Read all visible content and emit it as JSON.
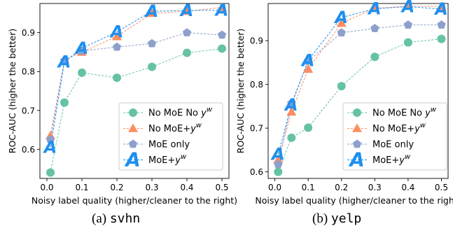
{
  "captions": [
    {
      "prefix": "(a)",
      "name": "svhn"
    },
    {
      "prefix": "(b)",
      "name": "yelp"
    }
  ],
  "chart_data": [
    {
      "type": "line",
      "xlabel": "Noisy label quality (higher/cleaner to the right)",
      "ylabel": "ROC-AUC (higher the better)",
      "xlim": [
        -0.02,
        0.52
      ],
      "ylim": [
        0.525,
        0.975
      ],
      "xticks": [
        "0.0",
        "0.1",
        "0.2",
        "0.3",
        "0.4",
        "0.5"
      ],
      "yticks": [
        "0.6",
        "0.7",
        "0.8",
        "0.9"
      ],
      "x": [
        0.01,
        0.05,
        0.1,
        0.2,
        0.3,
        0.4,
        0.5
      ],
      "legend_position": "lower-right",
      "series": [
        {
          "name": "No MoE No y^w",
          "label_base": "No MoE No ",
          "label_sup": "w",
          "marker": "circle",
          "color": "#66c2a5",
          "values": [
            0.54,
            0.72,
            0.797,
            0.784,
            0.812,
            0.848,
            0.859
          ]
        },
        {
          "name": "No MoE+y^w",
          "label_base": "No MoE+",
          "label_sup": "w",
          "marker": "triangle",
          "color": "#fc8d62",
          "values": [
            0.635,
            0.83,
            0.85,
            0.89,
            0.95,
            0.955,
            0.965
          ]
        },
        {
          "name": "MoE only",
          "label_base": "MoE only",
          "label_sup": "",
          "marker": "pentagon",
          "color": "#8da0cb",
          "values": [
            0.625,
            0.828,
            0.853,
            0.863,
            0.872,
            0.9,
            0.894
          ]
        },
        {
          "name": "MoE+y^w",
          "label_base": "MoE+",
          "label_sup": "w",
          "marker": "A",
          "color": "#1f8ff0",
          "values": [
            0.605,
            0.825,
            0.86,
            0.902,
            0.955,
            0.957,
            0.958
          ]
        }
      ]
    },
    {
      "type": "line",
      "xlabel": "Noisy label quality (higher/cleaner to the right)",
      "ylabel": "ROC-AUC (higher the better)",
      "xlim": [
        -0.02,
        0.52
      ],
      "ylim": [
        0.585,
        0.985
      ],
      "xticks": [
        "0.0",
        "0.1",
        "0.2",
        "0.3",
        "0.4",
        "0.5"
      ],
      "yticks": [
        "0.6",
        "0.7",
        "0.8",
        "0.9"
      ],
      "x": [
        0.01,
        0.05,
        0.1,
        0.2,
        0.3,
        0.4,
        0.5
      ],
      "legend_position": "lower-right",
      "series": [
        {
          "name": "No MoE No y^w",
          "label_base": "No MoE No ",
          "label_sup": "w",
          "marker": "circle",
          "color": "#66c2a5",
          "values": [
            0.6,
            0.678,
            0.701,
            0.796,
            0.863,
            0.896,
            0.904
          ]
        },
        {
          "name": "No MoE+y^w",
          "label_base": "No MoE+",
          "label_sup": "w",
          "marker": "triangle",
          "color": "#fc8d62",
          "values": [
            0.628,
            0.737,
            0.835,
            0.94,
            0.974,
            0.979,
            0.978
          ]
        },
        {
          "name": "MoE only",
          "label_base": "MoE only",
          "label_sup": "",
          "marker": "pentagon",
          "color": "#8da0cb",
          "values": [
            0.617,
            0.757,
            0.853,
            0.918,
            0.928,
            0.936,
            0.936
          ]
        },
        {
          "name": "MoE+y^w",
          "label_base": "MoE+",
          "label_sup": "w",
          "marker": "A",
          "color": "#1f8ff0",
          "values": [
            0.64,
            0.753,
            0.855,
            0.953,
            0.973,
            0.978,
            0.972
          ]
        }
      ]
    }
  ]
}
